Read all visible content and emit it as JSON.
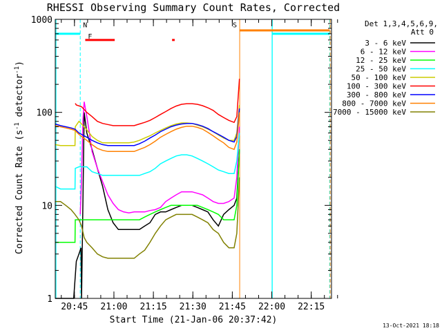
{
  "chart_data": {
    "type": "line",
    "title": "RHESSI Observing Summary Count Rates, Corrected",
    "xlabel": "Start Time (21-Jan-06 20:37:42)",
    "ylabel_main": "Corrected Count Rate (s",
    "ylabel_sup1": "-1",
    "ylabel_mid": " detector",
    "ylabel_sup2": "-1",
    "ylabel_end": ")",
    "ylog": true,
    "ylim": [
      1,
      1000
    ],
    "xlim_minutes": [
      0,
      105
    ],
    "x_ticks": [
      {
        "label": "20:45",
        "m": 7.3
      },
      {
        "label": "21:00",
        "m": 22.3
      },
      {
        "label": "21:15",
        "m": 37.3
      },
      {
        "label": "21:30",
        "m": 52.3
      },
      {
        "label": "21:45",
        "m": 67.3
      },
      {
        "label": "22:00",
        "m": 82.3
      },
      {
        "label": "22:15",
        "m": 97.3
      }
    ],
    "y_ticks": [
      {
        "label": "1",
        "v": 1
      },
      {
        "label": "10",
        "v": 10
      },
      {
        "label": "100",
        "v": 100
      },
      {
        "label": "1000",
        "v": 1000
      }
    ],
    "legend_header": [
      "Det 1,3,4,5,6,9,",
      "Att 0"
    ],
    "legend_position": "right",
    "series": [
      {
        "name": "3 - 6 keV",
        "color": "#000000",
        "x": [
          0,
          4,
          7,
          8,
          9,
          9.8,
          10,
          11,
          12,
          14,
          16,
          18,
          20,
          22,
          24,
          26,
          28,
          30,
          32,
          34,
          36,
          38,
          40,
          42,
          44,
          46,
          48,
          50,
          52,
          54,
          56,
          58,
          60,
          62,
          64,
          66,
          68,
          69,
          70
        ],
        "y": [
          1.0,
          1.0,
          1.0,
          2.5,
          3.0,
          3.5,
          1.0,
          100,
          60,
          40,
          25,
          16,
          9,
          6.5,
          5.5,
          5.5,
          5.5,
          5.5,
          5.5,
          6,
          6.5,
          8,
          8.5,
          8.5,
          9,
          9.5,
          10,
          10,
          10,
          9.5,
          9,
          8.5,
          7,
          6,
          8,
          9,
          10,
          12,
          40
        ]
      },
      {
        "name": "6 - 12 keV",
        "color": "#ff00ff",
        "x": [
          9.5,
          10,
          10.5,
          11,
          12,
          13,
          14,
          16,
          18,
          20,
          22,
          24,
          26,
          28,
          30,
          32,
          34,
          36,
          38,
          40,
          42,
          44,
          46,
          48,
          50,
          52,
          54,
          56,
          58,
          60,
          62,
          64,
          66,
          68,
          69,
          70
        ],
        "y": [
          8,
          20,
          80,
          130,
          90,
          60,
          38,
          25,
          18,
          13,
          10.5,
          9,
          8.5,
          8.3,
          8.5,
          8.5,
          8.5,
          8.8,
          9,
          9.5,
          11,
          12,
          13,
          14,
          14,
          14,
          13.5,
          13,
          12,
          11,
          10.5,
          10.5,
          11,
          12,
          20,
          70
        ]
      },
      {
        "name": "12 - 25 keV",
        "color": "#00ff00",
        "x": [
          0,
          2,
          4,
          6,
          7.5,
          7.6,
          8,
          9,
          10,
          11,
          12,
          14,
          16,
          18,
          20,
          22,
          24,
          26,
          28,
          30,
          32,
          34,
          36,
          38,
          40,
          42,
          44,
          46,
          48,
          50,
          52,
          54,
          56,
          58,
          60,
          62,
          64,
          66,
          68,
          69,
          70
        ],
        "y": [
          4,
          4,
          4,
          4,
          4,
          7,
          7,
          7,
          7,
          7,
          7,
          7,
          7,
          7,
          7,
          7,
          7,
          7,
          7,
          7,
          7,
          7.5,
          8,
          8.5,
          9,
          9.5,
          10,
          10,
          10,
          10,
          10,
          10,
          9.5,
          9,
          8.5,
          8,
          7,
          7,
          7,
          10,
          40
        ]
      },
      {
        "name": "25 - 50 keV",
        "color": "#00ffff",
        "x": [
          0,
          2,
          4,
          6,
          7.5,
          7.6,
          9,
          10,
          12,
          14,
          16,
          18,
          20,
          22,
          24,
          26,
          28,
          30,
          32,
          34,
          36,
          38,
          40,
          42,
          44,
          46,
          48,
          50,
          52,
          54,
          56,
          58,
          60,
          62,
          64,
          66,
          68,
          69,
          70
        ],
        "y": [
          16,
          15,
          15,
          15,
          15,
          25,
          26,
          26,
          26,
          23,
          22,
          21,
          21,
          21,
          21,
          21,
          21,
          21,
          21,
          22,
          23,
          25,
          28,
          30,
          32,
          34,
          35,
          35,
          34,
          32,
          30,
          28,
          26,
          24,
          23,
          22,
          22,
          30,
          60
        ]
      },
      {
        "name": "50 - 100 keV",
        "color": "#cccc00",
        "x": [
          0,
          2,
          4,
          6,
          7.5,
          7.6,
          9,
          10,
          12,
          14,
          16,
          18,
          20,
          22,
          24,
          26,
          28,
          30,
          32,
          34,
          36,
          38,
          40,
          42,
          44,
          46,
          48,
          50,
          52,
          54,
          56,
          58,
          60,
          62,
          64,
          66,
          68,
          69,
          70
        ],
        "y": [
          45,
          44,
          44,
          44,
          44,
          70,
          80,
          75,
          65,
          55,
          50,
          47,
          47,
          47,
          47,
          47,
          47,
          48,
          50,
          53,
          56,
          60,
          64,
          68,
          72,
          75,
          77,
          77,
          76,
          73,
          70,
          66,
          62,
          57,
          53,
          50,
          50,
          60,
          120
        ]
      },
      {
        "name": "100 - 300 keV",
        "color": "#ff0000",
        "x": [
          7.6,
          8,
          10,
          12,
          14,
          16,
          18,
          20,
          22,
          24,
          26,
          28,
          30,
          32,
          34,
          36,
          38,
          40,
          42,
          44,
          46,
          48,
          50,
          52,
          54,
          56,
          58,
          60,
          62,
          64,
          66,
          68,
          69,
          70
        ],
        "y": [
          125,
          120,
          115,
          100,
          90,
          80,
          76,
          74,
          72,
          72,
          72,
          72,
          72,
          75,
          78,
          82,
          88,
          95,
          102,
          110,
          117,
          122,
          124,
          124,
          122,
          118,
          112,
          105,
          95,
          88,
          82,
          78,
          90,
          230
        ]
      },
      {
        "name": "300 - 800 keV",
        "color": "#0000ff",
        "x": [
          0,
          2,
          4,
          6,
          7.5,
          9,
          10,
          12,
          14,
          16,
          18,
          20,
          22,
          24,
          26,
          28,
          30,
          32,
          34,
          36,
          38,
          40,
          42,
          44,
          46,
          48,
          50,
          52,
          54,
          56,
          58,
          60,
          62,
          64,
          66,
          68,
          69,
          70
        ],
        "y": [
          75,
          72,
          70,
          68,
          66,
          60,
          58,
          54,
          50,
          47,
          45,
          44,
          44,
          44,
          44,
          44,
          44,
          46,
          49,
          53,
          57,
          62,
          66,
          70,
          73,
          75,
          76,
          76,
          74,
          71,
          67,
          62,
          58,
          54,
          50,
          48,
          55,
          110
        ]
      },
      {
        "name": "800 - 7000 keV",
        "color": "#ff8000",
        "x": [
          0,
          2,
          4,
          6,
          7.5,
          9,
          10,
          12,
          14,
          16,
          18,
          20,
          22,
          24,
          26,
          28,
          30,
          32,
          34,
          36,
          38,
          40,
          42,
          44,
          46,
          48,
          50,
          52,
          54,
          56,
          58,
          60,
          62,
          64,
          66,
          68,
          69,
          70
        ],
        "y": [
          72,
          70,
          68,
          66,
          64,
          58,
          55,
          50,
          45,
          41,
          39,
          38,
          38,
          38,
          38,
          38,
          38,
          40,
          42,
          45,
          49,
          54,
          58,
          62,
          66,
          69,
          71,
          71,
          69,
          66,
          61,
          56,
          51,
          47,
          42,
          40,
          48,
          100
        ]
      },
      {
        "name": "7000 - 15000 keV",
        "color": "#808000",
        "x": [
          0,
          2,
          4,
          6,
          7.5,
          9,
          10,
          11,
          12,
          14,
          16,
          18,
          20,
          22,
          24,
          26,
          28,
          30,
          32,
          34,
          36,
          38,
          40,
          42,
          44,
          46,
          48,
          50,
          52,
          54,
          56,
          58,
          60,
          62,
          64,
          66,
          68,
          69,
          70
        ],
        "y": [
          11,
          11,
          10,
          9,
          8,
          7,
          6,
          4.5,
          4,
          3.5,
          3,
          2.8,
          2.7,
          2.7,
          2.7,
          2.7,
          2.7,
          2.7,
          3,
          3.3,
          4,
          5,
          6,
          7,
          7.5,
          8,
          8,
          8,
          8,
          7.5,
          7,
          6.5,
          5.5,
          5,
          4,
          3.5,
          3.5,
          5,
          20
        ]
      }
    ],
    "bands": [
      {
        "label": "F",
        "color": "#ff0000",
        "segments": [
          [
            11.4,
            22.6
          ],
          [
            44.4,
            45.4
          ]
        ],
        "level": 600
      },
      {
        "label": "N",
        "color": "#00ffff",
        "segments": [
          [
            0,
            9.5
          ]
        ],
        "level": 700
      },
      {
        "label": "S",
        "color": "#ff8000",
        "segments": [
          [
            70.1,
            105
          ]
        ],
        "level": 760
      }
    ],
    "markers": [
      {
        "label": "N",
        "color": "#00ffff",
        "at_minutes": 9.5
      },
      {
        "label": "F",
        "color": "#ff0000",
        "at_minutes": 11.4
      },
      {
        "label": "S",
        "color": "#ff8000",
        "at_minutes": 70.1
      }
    ],
    "verticals": [
      {
        "m": 0.3,
        "color": "#00ffff",
        "dash": false
      },
      {
        "m": 9.5,
        "color": "#00ffff",
        "dash": true
      },
      {
        "m": 70.1,
        "color": "#ff8000",
        "dash": false
      },
      {
        "m": 82.4,
        "color": "#00ffff",
        "dash": false
      },
      {
        "m": 82.5,
        "color": "#00ffff",
        "dash": false
      },
      {
        "m": 104.3,
        "color": "#00ffff",
        "dash": true
      },
      {
        "m": 104.5,
        "color": "#ff8000",
        "dash": true
      }
    ],
    "upper_bands": [
      {
        "color": "#00ffff",
        "segments": [
          [
            0,
            9.5
          ],
          [
            82.5,
            104.3
          ]
        ],
        "level": 700
      },
      {
        "color": "#ff8000",
        "segments": [
          [
            70.1,
            104.3
          ]
        ],
        "level": 760
      }
    ],
    "timestamp": "13-Oct-2021 18:18"
  }
}
